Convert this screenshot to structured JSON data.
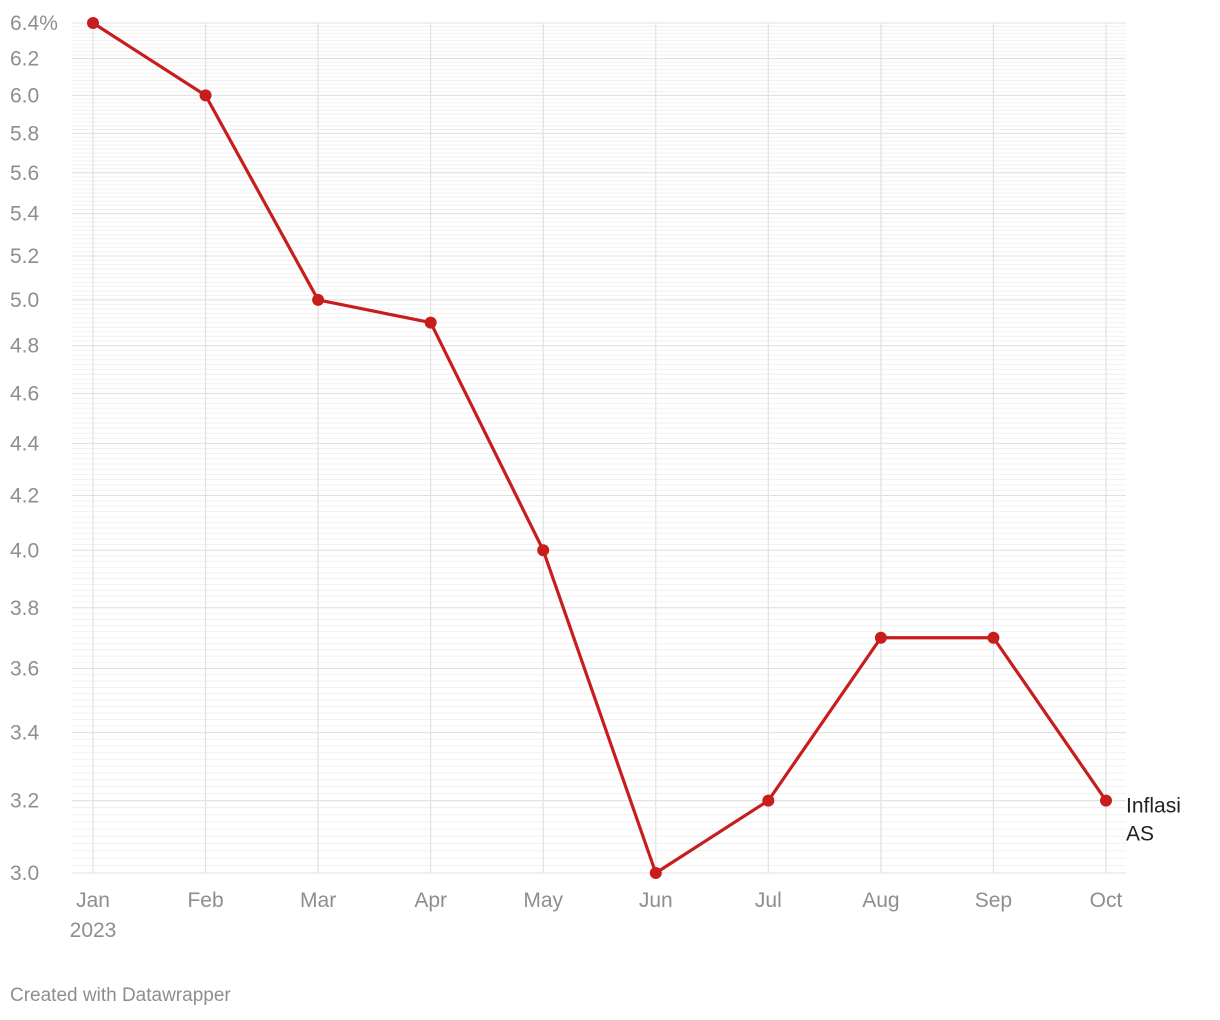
{
  "chart_data": {
    "type": "line",
    "x": [
      "Jan",
      "Feb",
      "Mar",
      "Apr",
      "May",
      "Jun",
      "Jul",
      "Aug",
      "Sep",
      "Oct"
    ],
    "x_year_label": "2023",
    "series": [
      {
        "name": "Inflasi AS",
        "values": [
          6.4,
          6.0,
          5.0,
          4.9,
          4.0,
          3.0,
          3.2,
          3.7,
          3.7,
          3.2
        ],
        "color": "#c71e1d"
      }
    ],
    "y_scale": "log",
    "ylim": [
      3.0,
      6.4
    ],
    "y_ticks": [
      3.0,
      3.2,
      3.4,
      3.6,
      3.8,
      4.0,
      4.2,
      4.4,
      4.6,
      4.8,
      5.0,
      5.2,
      5.4,
      5.6,
      5.8,
      6.0,
      6.2,
      6.4
    ],
    "y_tick_labels": [
      "3.0",
      "3.2",
      "3.4",
      "3.6",
      "3.8",
      "4.0",
      "4.2",
      "4.4",
      "4.6",
      "4.8",
      "5.0",
      "5.2",
      "5.4",
      "5.6",
      "5.8",
      "6.0",
      "6.2",
      "6.4%"
    ],
    "series_label_lines": [
      "Inflasi",
      "AS"
    ],
    "title": "",
    "xlabel": "",
    "ylabel": "",
    "grid": true,
    "legend": "none"
  },
  "footer": {
    "credit": "Created with Datawrapper"
  }
}
